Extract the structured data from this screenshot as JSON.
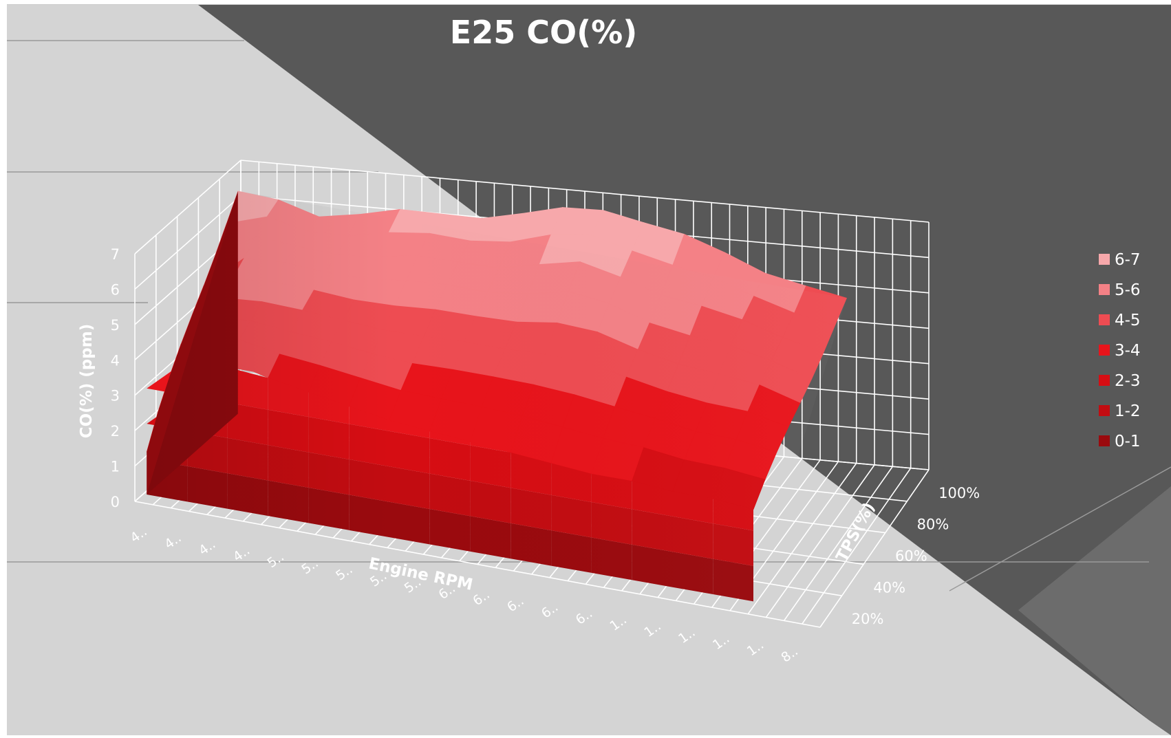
{
  "chart_data": {
    "type": "surface",
    "title": "E25 CO(%)",
    "xlabel": "Engine RPM",
    "ylabel": "TPS(%)",
    "zlabel": "CO(%) (ppm)",
    "z_ticks": [
      "0",
      "1",
      "2",
      "3",
      "4",
      "5",
      "6",
      "7"
    ],
    "zlim": [
      0,
      7
    ],
    "x_tick_labels": [
      "4..",
      "4..",
      "4..",
      "4..",
      "5..",
      "5..",
      "5..",
      "5..",
      "5..",
      "6..",
      "6..",
      "6..",
      "6..",
      "6..",
      "1..",
      "1..",
      "1..",
      "1..",
      "1..",
      "8.."
    ],
    "y_tick_labels": [
      "20%",
      "40%",
      "60%",
      "80%",
      "100%"
    ],
    "legend": {
      "placement": "right",
      "items": [
        {
          "label": "6-7",
          "color": "#f7a8ab"
        },
        {
          "label": "5-6",
          "color": "#f48186"
        },
        {
          "label": "4-5",
          "color": "#ee4c52"
        },
        {
          "label": "3-4",
          "color": "#e8141b"
        },
        {
          "label": "2-3",
          "color": "#d60d13"
        },
        {
          "label": "1-2",
          "color": "#c20c11"
        },
        {
          "label": "0-1",
          "color": "#9a0a0e"
        }
      ]
    },
    "band_colors": [
      "#9a0a0e",
      "#c20c11",
      "#d60d13",
      "#e8141b",
      "#ee4c52",
      "#f48186",
      "#f7a8ab"
    ],
    "surface_back_edge": [
      6.2,
      6.1,
      5.9,
      6.0,
      6.1,
      6.2,
      6.3,
      6.4,
      6.6,
      6.8,
      6.6,
      6.2,
      5.8,
      5.5,
      5.2,
      4.8
    ],
    "surface_front_edge": [
      1.2,
      4.0,
      4.2,
      3.9,
      3.7,
      3.5,
      3.3,
      3.2,
      3.1,
      3.0,
      2.9,
      2.8,
      2.8,
      2.7,
      2.7,
      2.6
    ],
    "grid": true,
    "colors": {
      "wall_light": "#d4d4d4",
      "wall_dark": "#585858",
      "grid_line": "#ffffff"
    }
  }
}
